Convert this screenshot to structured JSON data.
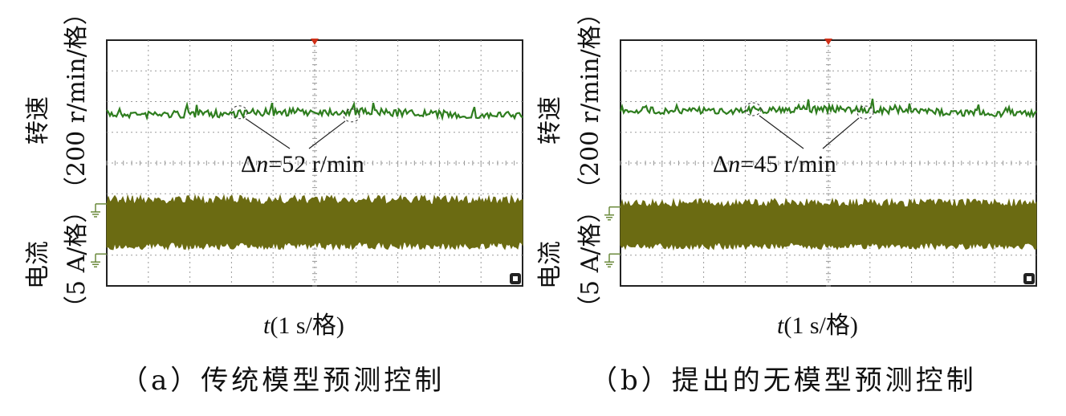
{
  "chart_data": [
    {
      "type": "line",
      "panel": "a",
      "caption": "（a）传统模型预测控制",
      "xlabel_var": "t",
      "xlabel_unit": "(1 s/格)",
      "speed_label": "转速",
      "speed_unit": "（200 r/min/格）",
      "current_label": "电流",
      "current_unit": "（5 A/格）",
      "annotation_delta": "Δ",
      "annotation_var": "n",
      "annotation_value": "=52 r/min",
      "grid": true,
      "x_divisions": 10,
      "y_divisions": 8,
      "series": [
        {
          "name": "转速",
          "color": "#2e7d1e",
          "level_div": 2.4,
          "ripple_div": 0.13
        },
        {
          "name": "电流",
          "color": "#6b6b12",
          "band_top_div": 5.2,
          "band_bottom_div": 6.7,
          "ripple_div": 0.15
        }
      ]
    },
    {
      "type": "line",
      "panel": "b",
      "caption": "（b）提出的无模型预测控制",
      "xlabel_var": "t",
      "xlabel_unit": "(1 s/格)",
      "speed_label": "转速",
      "speed_unit": "（200 r/min/格）",
      "current_label": "电流",
      "current_unit": "（5 A/格）",
      "annotation_delta": "Δ",
      "annotation_var": "n",
      "annotation_value": "=45 r/min",
      "grid": true,
      "x_divisions": 10,
      "y_divisions": 8,
      "series": [
        {
          "name": "转速",
          "color": "#2e7d1e",
          "level_div": 2.3,
          "ripple_div": 0.11
        },
        {
          "name": "电流",
          "color": "#6b6b12",
          "band_top_div": 5.3,
          "band_bottom_div": 6.7,
          "ripple_div": 0.14
        }
      ]
    }
  ]
}
